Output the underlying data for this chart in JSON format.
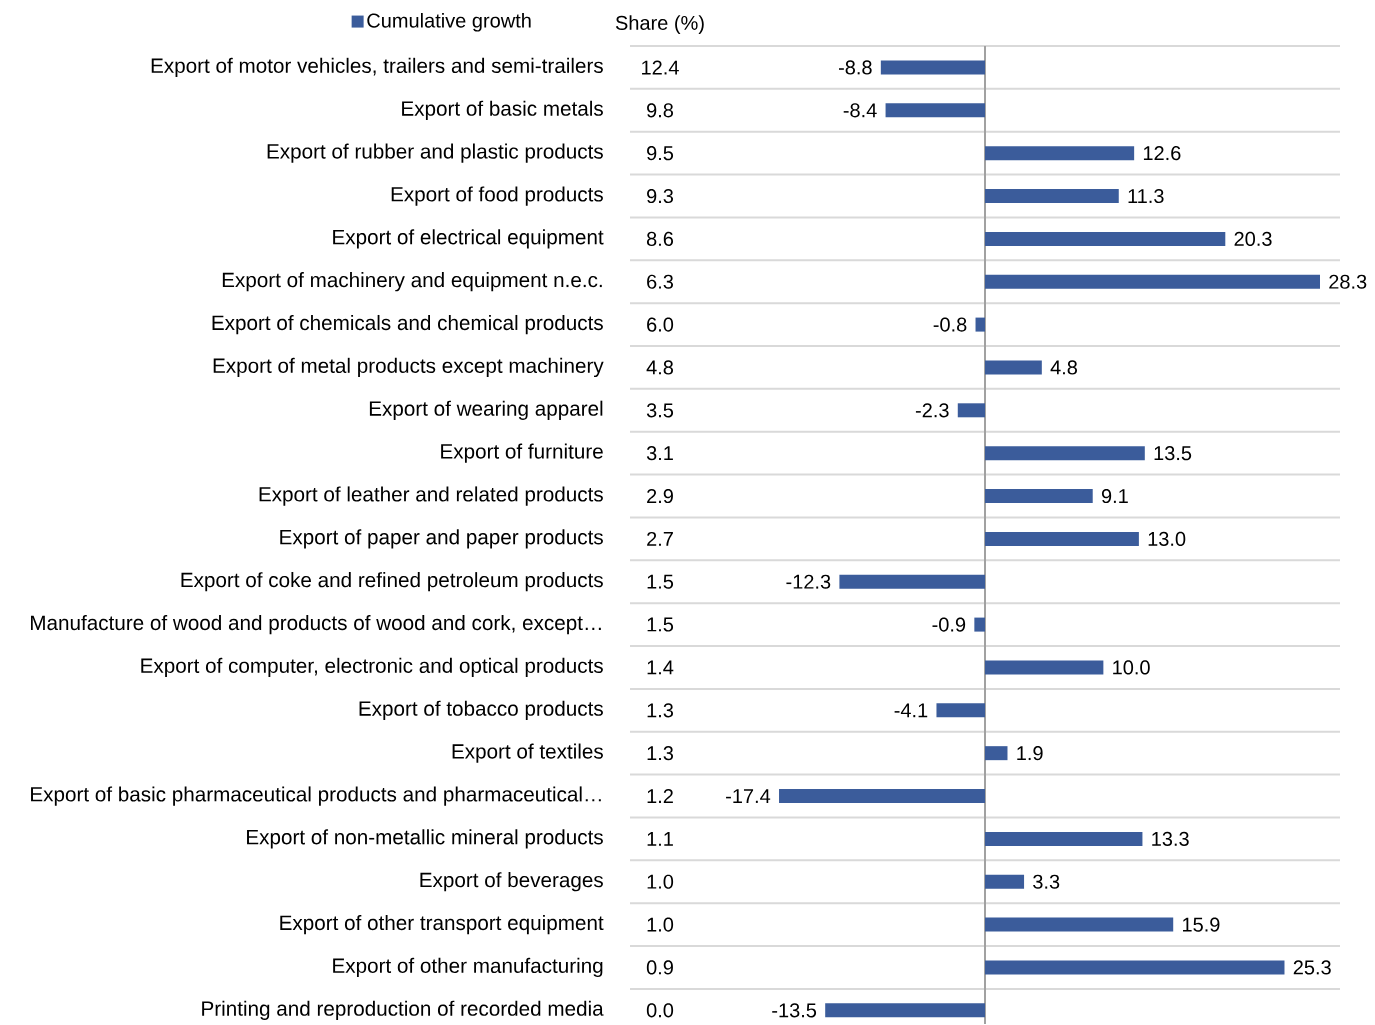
{
  "chart_data": {
    "type": "bar",
    "orientation": "horizontal",
    "categories": [
      "Export of motor vehicles, trailers and semi-trailers",
      "Export of basic metals",
      "Export of rubber and plastic products",
      "Export of food products",
      "Export of electrical equipment",
      "Export of machinery and equipment n.e.c.",
      "Export of chemicals and chemical products",
      "Export of metal products except machinery",
      "Export of wearing apparel",
      "Export of furniture",
      "Export of leather and related products",
      "Export of paper and paper products",
      "Export of coke and refined petroleum products",
      "Manufacture of wood and products of wood and cork, except…",
      "Export of computer, electronic and optical products",
      "Export of tobacco products",
      "Export of textiles",
      "Export of basic pharmaceutical products and pharmaceutical…",
      "Export of non-metallic mineral products",
      "Export of beverages",
      "Export of other transport equipment",
      "Export of other manufacturing",
      "Printing and reproduction of recorded media"
    ],
    "series": [
      {
        "name": "Cumulative growth",
        "color": "#3b5c9b",
        "values": [
          -8.8,
          -8.4,
          12.6,
          11.3,
          20.3,
          28.3,
          -0.8,
          4.8,
          -2.3,
          13.5,
          9.1,
          13.0,
          -12.3,
          -0.9,
          10.0,
          -4.1,
          1.9,
          -17.4,
          13.3,
          3.3,
          15.9,
          25.3,
          -13.5
        ],
        "value_labels": [
          "-8.8",
          "-8.4",
          "12.6",
          "11.3",
          "20.3",
          "28.3",
          "-0.8",
          "4.8",
          "-2.3",
          "13.5",
          "9.1",
          "13.0",
          "-12.3",
          "-0.9",
          "10.0",
          "-4.1",
          "1.9",
          "-17.4",
          "13.3",
          "3.3",
          "15.9",
          "25.3",
          "-13.5"
        ]
      }
    ],
    "legend": "top left",
    "grid": "y",
    "tick_labels": "y",
    "annotations": [
      "Share (%)",
      "12.4",
      "9.8",
      "9.5",
      "9.3",
      "8.6",
      "6.3",
      "6.0",
      "4.8",
      "3.5",
      "3.1",
      "2.9",
      "2.7",
      "1.5",
      "1.5",
      "1.4",
      "1.3",
      "1.3",
      "1.2",
      "1.1",
      "1.0",
      "1.0",
      "0.9",
      "0.0"
    ]
  }
}
